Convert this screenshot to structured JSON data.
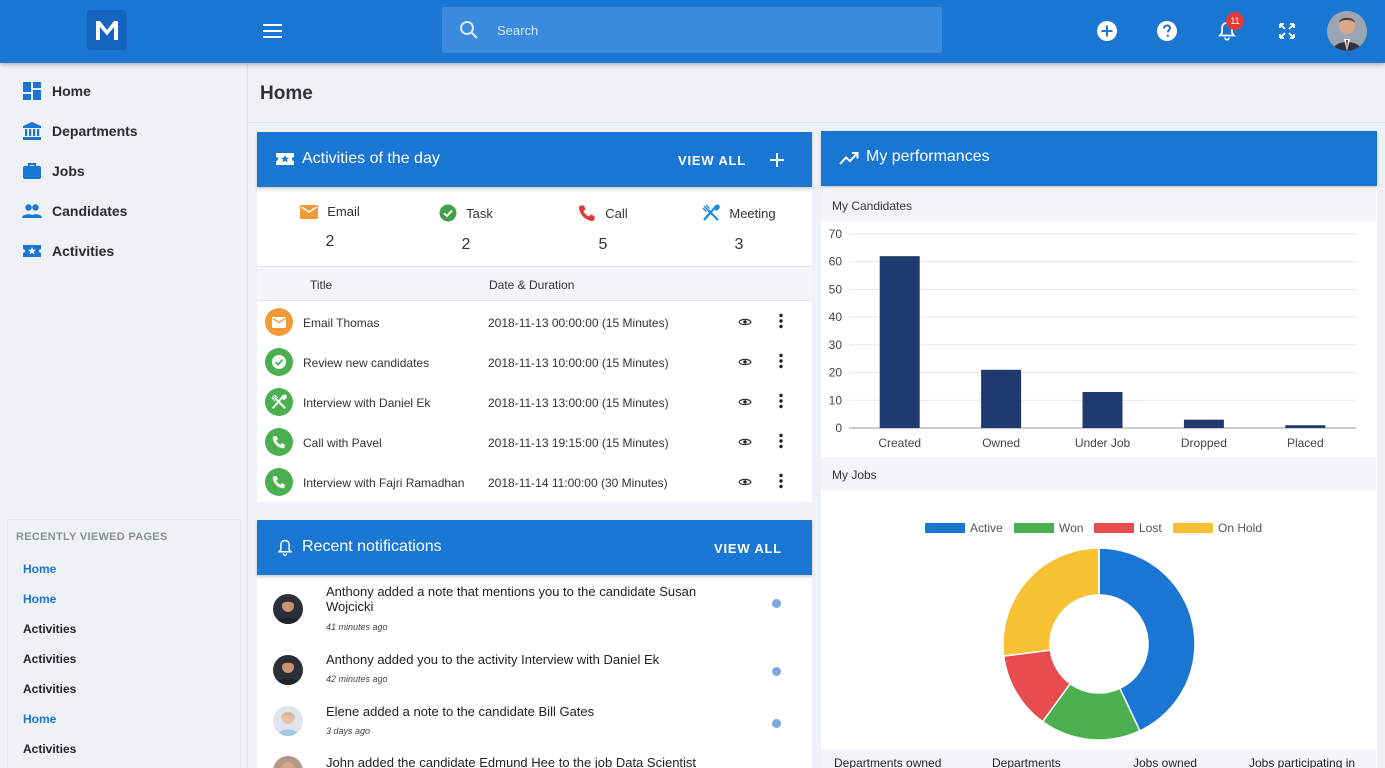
{
  "header": {
    "search_placeholder": "Search",
    "notification_count": "11"
  },
  "sidebar": {
    "items": [
      {
        "label": "Home"
      },
      {
        "label": "Departments"
      },
      {
        "label": "Jobs"
      },
      {
        "label": "Candidates"
      },
      {
        "label": "Activities"
      }
    ],
    "recent_title": "RECENTLY VIEWED PAGES",
    "recent": [
      {
        "label": "Home",
        "active": true
      },
      {
        "label": "Home",
        "active": true
      },
      {
        "label": "Activities",
        "active": false
      },
      {
        "label": "Activities",
        "active": false
      },
      {
        "label": "Activities",
        "active": false
      },
      {
        "label": "Home",
        "active": true
      },
      {
        "label": "Activities",
        "active": false
      }
    ]
  },
  "page": {
    "title": "Home"
  },
  "activities": {
    "title": "Activities of the day",
    "view_all": "VIEW ALL",
    "stats": [
      {
        "label": "Email",
        "count": "2",
        "icon": "email-icon",
        "color": "#f19a38"
      },
      {
        "label": "Task",
        "count": "2",
        "icon": "check-circle-icon",
        "color": "#43a047"
      },
      {
        "label": "Call",
        "count": "5",
        "icon": "phone-icon",
        "color": "#e53935"
      },
      {
        "label": "Meeting",
        "count": "3",
        "icon": "utensils-icon",
        "color": "#1e88e5"
      }
    ],
    "columns": [
      "Title",
      "Date & Duration"
    ],
    "rows": [
      {
        "title": "Email Thomas",
        "date": "2018-11-13 00:00:00 (15 Minutes)",
        "type": "email",
        "color": "#f19a38"
      },
      {
        "title": "Review new candidates",
        "date": "2018-11-13 10:00:00 (15 Minutes)",
        "type": "task",
        "color": "#4caf50"
      },
      {
        "title": "Interview with Daniel Ek",
        "date": "2018-11-13 13:00:00 (15 Minutes)",
        "type": "meeting",
        "color": "#4caf50"
      },
      {
        "title": "Call with Pavel",
        "date": "2018-11-13 19:15:00 (15 Minutes)",
        "type": "call",
        "color": "#4caf50"
      },
      {
        "title": "Interview with Fajri Ramadhan",
        "date": "2018-11-14 11:00:00 (30 Minutes)",
        "type": "call",
        "color": "#4caf50"
      }
    ]
  },
  "notifications": {
    "title": "Recent notifications",
    "view_all": "VIEW ALL",
    "items": [
      {
        "text": "Anthony added a note that mentions you to the candidate Susan Wojcicki",
        "time": "41 minutes ago"
      },
      {
        "text": "Anthony added you to the activity Interview with Daniel Ek",
        "time": "42 minutes ago"
      },
      {
        "text": "Elene added a note to the candidate Bill Gates",
        "time": "3 days ago"
      },
      {
        "text": "John added the candidate Edmund Hee to the job Data Scientist",
        "time": ""
      }
    ]
  },
  "performance": {
    "title": "My performances",
    "candidates_title": "My Candidates",
    "jobs_title": "My Jobs",
    "footer_labels": [
      "Departments owned",
      "Departments",
      "Jobs owned",
      "Jobs participating in"
    ]
  },
  "chart_data": [
    {
      "type": "bar",
      "title": "My Candidates",
      "categories": [
        "Created",
        "Owned",
        "Under Job",
        "Dropped",
        "Placed"
      ],
      "values": [
        62,
        21,
        13,
        3,
        1
      ],
      "ylim": [
        0,
        70
      ],
      "yticks": [
        0,
        10,
        20,
        30,
        40,
        50,
        60,
        70
      ],
      "color": "#1f3a6e",
      "grid": true
    },
    {
      "type": "pie",
      "title": "My Jobs",
      "donut": true,
      "legend_position": "top",
      "labels": [
        "Active",
        "Won",
        "Lost",
        "On Hold"
      ],
      "values": [
        43,
        17,
        13,
        27
      ],
      "colors": [
        "#1976d2",
        "#4caf50",
        "#e84c4f",
        "#f6c233"
      ]
    }
  ]
}
